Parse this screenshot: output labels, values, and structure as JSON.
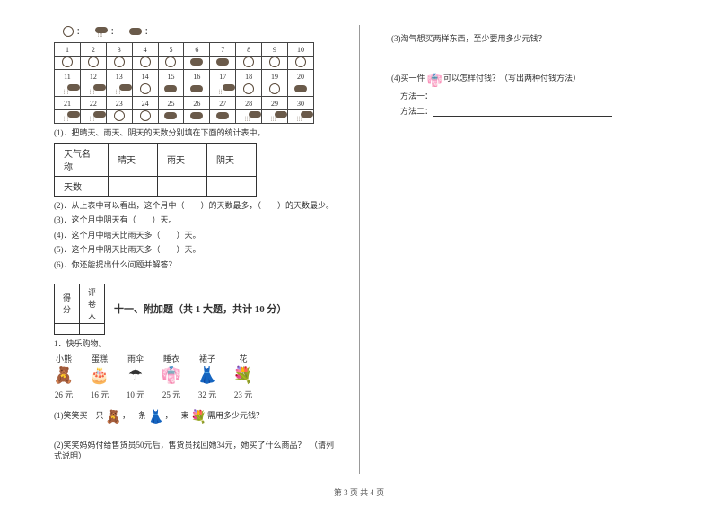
{
  "legend": {
    "sun_label": "：",
    "rain_label": "：",
    "cloud_label": "："
  },
  "calendar": {
    "days": [
      "1",
      "2",
      "3",
      "4",
      "5",
      "6",
      "7",
      "8",
      "9",
      "10",
      "11",
      "12",
      "13",
      "14",
      "15",
      "16",
      "17",
      "18",
      "19",
      "20",
      "21",
      "22",
      "23",
      "24",
      "25",
      "26",
      "27",
      "28",
      "29",
      "30"
    ],
    "weather": [
      "sun",
      "sun",
      "sun",
      "sun",
      "sun",
      "cloud",
      "cloud",
      "sun",
      "sun",
      "sun",
      "rain",
      "rain",
      "rain",
      "sun",
      "cloud",
      "cloud",
      "rain",
      "sun",
      "sun",
      "cloud",
      "rain",
      "rain",
      "sun",
      "sun",
      "cloud",
      "cloud",
      "cloud",
      "rain",
      "rain",
      "rain"
    ]
  },
  "q1": "(1)．把晴天、雨天、阴天的天数分别填在下面的统计表中。",
  "stat_table": {
    "header": "天气名称",
    "cols": [
      "晴天",
      "雨天",
      "阴天"
    ],
    "row_label": "天数"
  },
  "q2": "(2)．从上表中可以看出，这个月中（　　）的天数最多，（　　）的天数最少。",
  "q3": "(3)．这个月中阴天有（　　）天。",
  "q4": "(4)．这个月中晴天比雨天多（　　）天。",
  "q5": "(5)．这个月中阴天比雨天多（　　）天。",
  "q6": "(6)．你还能提出什么问题并解答？",
  "score_labels": [
    "得分",
    "评卷人"
  ],
  "section11": "十一、附加题（共 1 大题，共计 10 分）",
  "shop_title": "1．快乐购物。",
  "shop": {
    "items": [
      {
        "name": "小熊",
        "icon": "🧸",
        "price": "26 元"
      },
      {
        "name": "蛋糕",
        "icon": "🎂",
        "price": "16 元"
      },
      {
        "name": "雨伞",
        "icon": "☂",
        "price": "10 元"
      },
      {
        "name": "睡衣",
        "icon": "👘",
        "price": "25 元"
      },
      {
        "name": "裙子",
        "icon": "👗",
        "price": "32 元"
      },
      {
        "name": "花",
        "icon": "💐",
        "price": "23 元"
      }
    ]
  },
  "sq1_a": "(1)笑笑买一只",
  "sq1_b": "，一条",
  "sq1_c": "，一束",
  "sq1_d": "需用多少元钱？",
  "sq1_icons": [
    "🧸",
    "👗",
    "💐"
  ],
  "sq2": "(2)笑笑妈妈付给售货员50元后，售货员找回她34元，她买了什么商品？　（请列式说明）",
  "right_q3": "(3)淘气想买两样东西，至少要用多少元钱？",
  "right_q4_a": "(4)买一件",
  "right_q4_b": "可以怎样付钱？（写出两种付钱方法）",
  "right_q4_icon": "👘",
  "method1_label": "方法一：",
  "method2_label": "方法二：",
  "footer": "第 3 页 共 4 页"
}
